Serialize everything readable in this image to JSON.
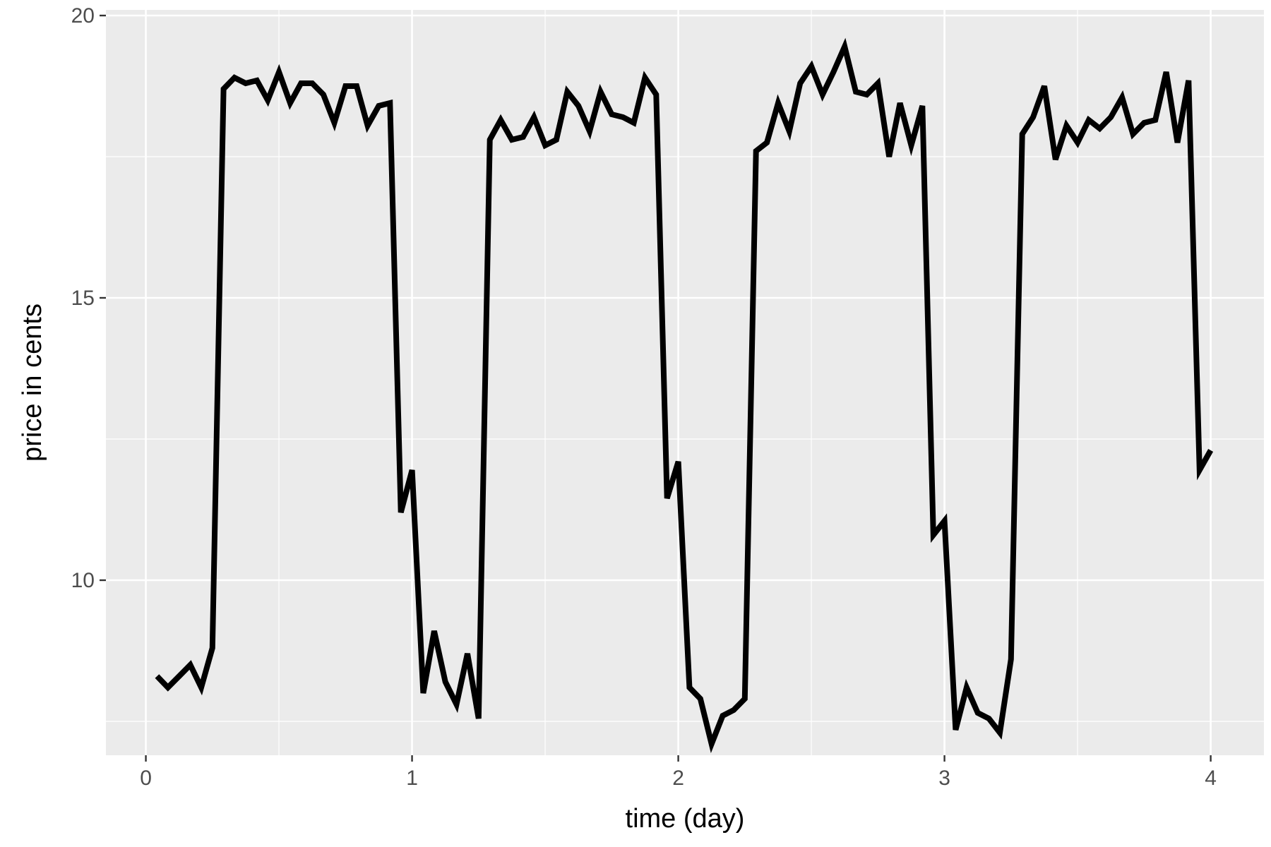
{
  "chart_data": {
    "type": "line",
    "title": "",
    "xlabel": "time (day)",
    "ylabel": "price in cents",
    "xlim": [
      -0.15,
      4.2
    ],
    "ylim": [
      6.9,
      20.1
    ],
    "x_ticks": [
      0,
      1,
      2,
      3,
      4
    ],
    "y_ticks": [
      10,
      15,
      20
    ],
    "x_tick_labels": [
      "0",
      "1",
      "2",
      "3",
      "4"
    ],
    "y_tick_labels": [
      "10",
      "15",
      "20"
    ],
    "grid": true,
    "legend": "none",
    "colors": {
      "panel_background": "#ebebeb",
      "grid_major": "#ffffff",
      "grid_minor": "#f5f5f5",
      "line": "#000000",
      "tick": "#333333"
    },
    "series": [
      {
        "x": [
          0.042,
          0.083,
          0.125,
          0.167,
          0.208,
          0.25,
          0.292,
          0.333,
          0.375,
          0.417,
          0.458,
          0.5,
          0.542,
          0.583,
          0.625,
          0.667,
          0.708,
          0.75,
          0.792,
          0.833,
          0.875,
          0.917,
          0.958,
          1.0,
          1.042,
          1.083,
          1.125,
          1.167,
          1.208,
          1.25,
          1.292,
          1.333,
          1.375,
          1.417,
          1.458,
          1.5,
          1.542,
          1.583,
          1.625,
          1.667,
          1.708,
          1.75,
          1.792,
          1.833,
          1.875,
          1.917,
          1.958,
          2.0,
          2.042,
          2.083,
          2.125,
          2.167,
          2.208,
          2.25,
          2.292,
          2.333,
          2.375,
          2.417,
          2.458,
          2.5,
          2.542,
          2.583,
          2.625,
          2.667,
          2.708,
          2.75,
          2.792,
          2.833,
          2.875,
          2.917,
          2.958,
          3.0,
          3.042,
          3.083,
          3.125,
          3.167,
          3.208,
          3.25,
          3.292,
          3.333,
          3.375,
          3.417,
          3.458,
          3.5,
          3.542,
          3.583,
          3.625,
          3.667,
          3.708,
          3.75,
          3.792,
          3.833,
          3.875,
          3.917,
          3.958,
          4.0
        ],
        "y": [
          8.3,
          8.1,
          8.3,
          8.5,
          8.1,
          8.8,
          18.7,
          18.9,
          18.8,
          18.85,
          18.5,
          19.0,
          18.45,
          18.8,
          18.8,
          18.6,
          18.1,
          18.75,
          18.75,
          18.05,
          18.4,
          18.45,
          11.2,
          11.95,
          8.0,
          9.1,
          8.2,
          7.8,
          8.7,
          7.55,
          17.8,
          18.15,
          17.8,
          17.85,
          18.2,
          17.7,
          17.8,
          18.65,
          18.4,
          17.95,
          18.65,
          18.25,
          18.2,
          18.1,
          18.9,
          18.6,
          11.45,
          12.1,
          8.1,
          7.9,
          7.1,
          7.6,
          7.7,
          7.9,
          17.6,
          17.75,
          18.45,
          17.95,
          18.8,
          19.1,
          18.6,
          19.0,
          19.45,
          18.65,
          18.6,
          18.8,
          17.5,
          18.45,
          17.7,
          18.4,
          10.8,
          11.05,
          7.35,
          8.1,
          7.65,
          7.55,
          7.3,
          8.6,
          17.9,
          18.2,
          18.75,
          17.45,
          18.05,
          17.75,
          18.15,
          18.0,
          18.2,
          18.55,
          17.9,
          18.1,
          18.15,
          19.0,
          17.75,
          18.85,
          11.95,
          12.3
        ]
      }
    ]
  }
}
